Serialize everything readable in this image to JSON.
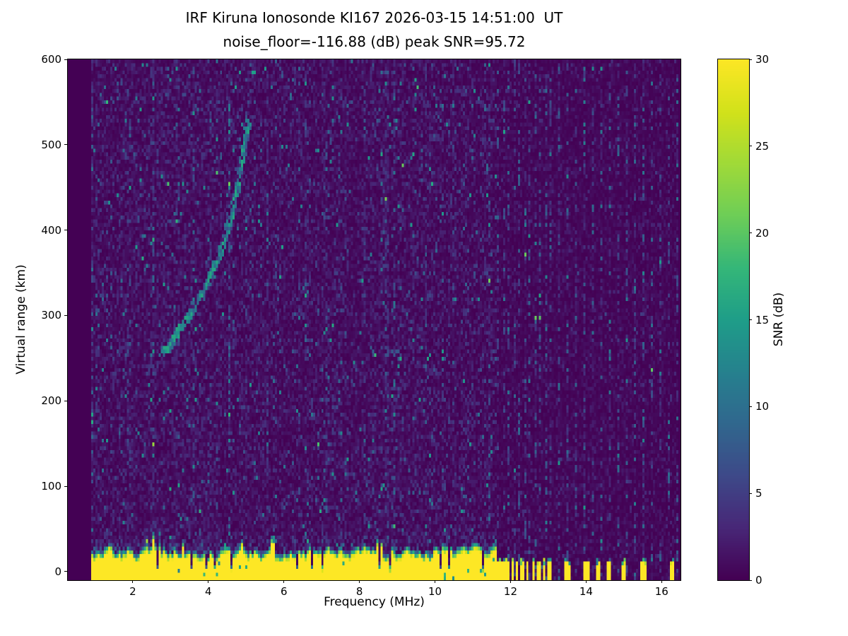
{
  "chart_data": {
    "type": "heatmap",
    "title": "IRF Kiruna Ionosonde KI167 2026-03-15 14:51:00  UT",
    "subtitle": "noise_floor=-116.88 (dB) peak SNR=95.72",
    "station": "IRF Kiruna Ionosonde KI167",
    "timestamp_ut": "2026-03-15 14:51:00",
    "noise_floor_db": -116.88,
    "peak_snr_db": 95.72,
    "xlabel": "Frequency (MHz)",
    "ylabel": "Virtual range (km)",
    "x_range": [
      0.28,
      16.5
    ],
    "y_range": [
      -10,
      600
    ],
    "x_ticks": [
      2,
      4,
      6,
      8,
      10,
      12,
      14,
      16
    ],
    "y_ticks": [
      0,
      100,
      200,
      300,
      400,
      500,
      600
    ],
    "colormap": "viridis",
    "grid": false,
    "colorbar": {
      "label": "SNR (dB)",
      "range": [
        0,
        30
      ],
      "ticks": [
        0,
        5,
        10,
        15,
        20,
        25,
        30
      ]
    },
    "data_start_mhz": 0.88,
    "data_end_mhz": 16.46,
    "interference_start_mhz": 11.62,
    "ground_clutter": {
      "top_mean_km": 26,
      "top_jitter_km": 8,
      "saturation_snr_db": 30
    },
    "echo_trace": {
      "snr_db_range": [
        6,
        16
      ],
      "points": [
        [
          2.78,
          256
        ],
        [
          2.92,
          263
        ],
        [
          3.06,
          271
        ],
        [
          3.2,
          280
        ],
        [
          3.35,
          290
        ],
        [
          3.5,
          300
        ],
        [
          3.66,
          312
        ],
        [
          3.82,
          325
        ],
        [
          3.98,
          339
        ],
        [
          4.14,
          355
        ],
        [
          4.3,
          373
        ],
        [
          4.45,
          392
        ],
        [
          4.58,
          412
        ],
        [
          4.7,
          433
        ],
        [
          4.8,
          455
        ],
        [
          4.89,
          477
        ],
        [
          4.96,
          498
        ],
        [
          5.02,
          515
        ],
        [
          5.08,
          528
        ]
      ]
    },
    "rfi_bars_mhz": [
      [
        11.68,
        0.08
      ],
      [
        11.8,
        0.08
      ],
      [
        11.92,
        0.08
      ],
      [
        12.04,
        0.08
      ],
      [
        12.17,
        0.08
      ],
      [
        12.3,
        0.09
      ],
      [
        12.46,
        0.08
      ],
      [
        12.6,
        0.08
      ],
      [
        12.74,
        0.09
      ],
      [
        12.9,
        0.08
      ],
      [
        13.03,
        0.08
      ],
      [
        13.5,
        0.14
      ],
      [
        14.02,
        0.2
      ],
      [
        14.32,
        0.09
      ],
      [
        14.6,
        0.13
      ],
      [
        15.0,
        0.09
      ],
      [
        15.52,
        0.17
      ],
      [
        16.3,
        0.12
      ]
    ],
    "rfi_stripes_mhz": [
      11.68,
      11.82,
      11.96,
      12.1,
      12.24,
      12.38,
      12.52,
      12.66,
      12.8,
      12.94,
      13.08,
      13.3,
      13.5,
      13.72,
      13.95,
      14.18,
      14.4,
      14.62,
      14.85,
      15.08,
      15.3,
      15.52,
      15.75,
      15.98,
      16.2,
      16.42
    ],
    "seed": 167
  }
}
